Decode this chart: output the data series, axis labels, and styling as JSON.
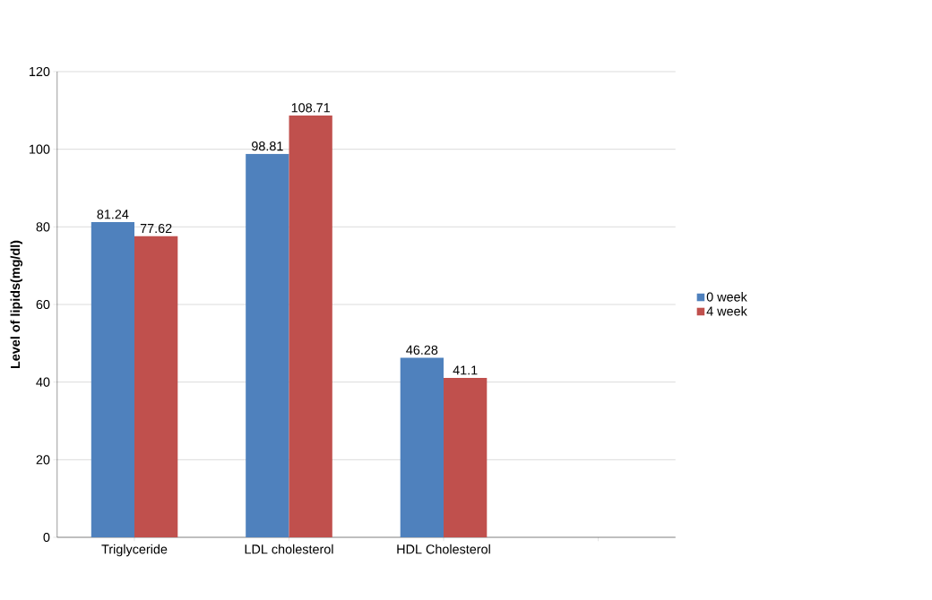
{
  "chart_data": {
    "type": "bar",
    "ylabel": "Level  of lipids(mg/dl)",
    "categories": [
      "Triglyceride",
      "LDL cholesterol",
      "HDL Cholesterol",
      null
    ],
    "series": [
      {
        "name": "0 week",
        "color": "#4f81bd",
        "values": [
          81.24,
          98.81,
          46.28,
          null
        ],
        "value_labels": [
          "81.24",
          "98.81",
          "46.28",
          null
        ]
      },
      {
        "name": "4 week",
        "color": "#c0504d",
        "values": [
          77.62,
          108.71,
          41.1,
          null
        ],
        "value_labels": [
          "77.62",
          "108.71",
          "41.1",
          null
        ]
      }
    ],
    "ylim": [
      0,
      120
    ],
    "yticks": [
      0,
      20,
      40,
      60,
      80,
      100,
      120
    ],
    "grid": "y",
    "legend": "right"
  }
}
